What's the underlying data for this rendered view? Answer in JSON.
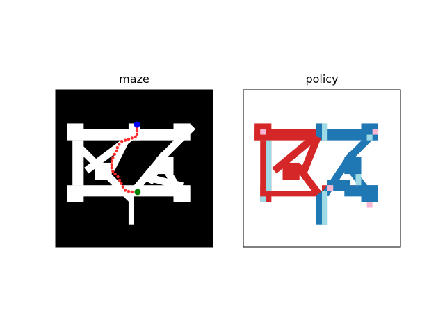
{
  "panels": {
    "maze_title": "maze",
    "policy_title": "policy"
  },
  "colors": {
    "maze_wall": "#000000",
    "maze_floor": "#ffffff",
    "path_dot": "#ff2a2a",
    "start_marker": "#0000ff",
    "goal_marker": "#008000",
    "policy_red": "#d62728",
    "policy_blue": "#1f77b4",
    "policy_lightblue": "#9edae5",
    "policy_pink": "#f7b6d2"
  },
  "grid": {
    "cols": 28,
    "rows": 28
  },
  "maze": {
    "rects": [
      [
        3,
        7,
        20,
        2
      ],
      [
        2,
        6,
        3,
        3
      ],
      [
        21,
        6,
        3,
        3
      ],
      [
        3,
        17,
        20,
        2
      ],
      [
        2,
        17,
        3,
        3
      ],
      [
        21,
        17,
        3,
        3
      ],
      [
        3,
        9,
        2,
        8
      ],
      [
        13,
        6,
        2,
        3
      ],
      [
        13,
        19,
        1,
        5
      ],
      [
        7,
        13,
        3,
        3
      ],
      [
        18,
        12,
        3,
        3
      ]
    ],
    "lines": [
      [
        [
          6,
          14
        ],
        [
          14,
          8
        ]
      ],
      [
        [
          8,
          14
        ],
        [
          13,
          19
        ]
      ],
      [
        [
          10,
          14
        ],
        [
          13,
          8
        ]
      ],
      [
        [
          14,
          18
        ],
        [
          19,
          12
        ]
      ],
      [
        [
          19,
          12
        ],
        [
          24,
          7
        ]
      ],
      [
        [
          17,
          16
        ],
        [
          19,
          12
        ]
      ],
      [
        [
          19,
          13
        ],
        [
          22,
          18
        ]
      ],
      [
        [
          18,
          16
        ],
        [
          22,
          17
        ]
      ],
      [
        [
          5,
          11
        ],
        [
          7,
          13
        ]
      ]
    ],
    "path": [
      [
        14.5,
        6.7
      ],
      [
        14.5,
        7.3
      ],
      [
        14.5,
        7.9
      ],
      [
        14.2,
        8.4
      ],
      [
        13.6,
        8.6
      ],
      [
        13.0,
        8.8
      ],
      [
        12.4,
        9.0
      ],
      [
        11.8,
        9.2
      ],
      [
        11.3,
        9.7
      ],
      [
        11.0,
        10.3
      ],
      [
        10.8,
        10.9
      ],
      [
        10.5,
        11.5
      ],
      [
        10.2,
        12.1
      ],
      [
        10.0,
        12.7
      ],
      [
        10.0,
        13.3
      ],
      [
        10.0,
        13.9
      ],
      [
        10.2,
        14.5
      ],
      [
        10.6,
        15.0
      ],
      [
        11.1,
        15.5
      ],
      [
        11.4,
        16.1
      ],
      [
        11.7,
        16.7
      ],
      [
        12.0,
        17.3
      ],
      [
        12.4,
        17.9
      ],
      [
        13.0,
        18.1
      ],
      [
        13.6,
        18.2
      ]
    ],
    "start": [
      14.5,
      6.2
    ],
    "goal": [
      14.6,
      18.2
    ]
  },
  "policy": {
    "red_rects": [
      [
        2,
        7,
        11,
        2
      ],
      [
        2,
        6,
        3,
        3
      ],
      [
        3,
        9,
        2,
        10
      ],
      [
        3,
        17,
        2,
        3
      ],
      [
        5,
        18,
        8,
        1
      ],
      [
        7,
        13,
        3,
        3
      ],
      [
        14,
        17,
        7,
        1
      ]
    ],
    "blue_rects": [
      [
        15,
        7,
        9,
        2
      ],
      [
        21,
        6,
        3,
        3
      ],
      [
        13,
        6,
        2,
        3
      ],
      [
        13,
        18,
        2,
        6
      ],
      [
        18,
        17,
        6,
        2
      ],
      [
        21,
        17,
        3,
        3
      ],
      [
        18,
        12,
        3,
        3
      ],
      [
        15,
        16,
        4,
        2
      ]
    ],
    "light_rects": [
      [
        14,
        6,
        1,
        3
      ],
      [
        4,
        9,
        1,
        9
      ],
      [
        14,
        18,
        1,
        6
      ],
      [
        20,
        15,
        1,
        2
      ],
      [
        22,
        8,
        1,
        1
      ],
      [
        3,
        19,
        1,
        1
      ],
      [
        15,
        17,
        1,
        1
      ]
    ],
    "pink_rects": [
      [
        3,
        7,
        1,
        1
      ],
      [
        23,
        7,
        1,
        1
      ],
      [
        15,
        17,
        1,
        1
      ],
      [
        22,
        20,
        1,
        1
      ]
    ],
    "red_lines": [
      [
        [
          6,
          14
        ],
        [
          12,
          9
        ]
      ],
      [
        [
          10,
          14
        ],
        [
          13,
          18
        ]
      ],
      [
        [
          11,
          14
        ],
        [
          13,
          9
        ]
      ]
    ],
    "blue_lines": [
      [
        [
          15,
          18
        ],
        [
          19,
          12
        ]
      ],
      [
        [
          19,
          12
        ],
        [
          23,
          8
        ]
      ],
      [
        [
          19,
          14
        ],
        [
          22,
          18
        ]
      ]
    ]
  }
}
